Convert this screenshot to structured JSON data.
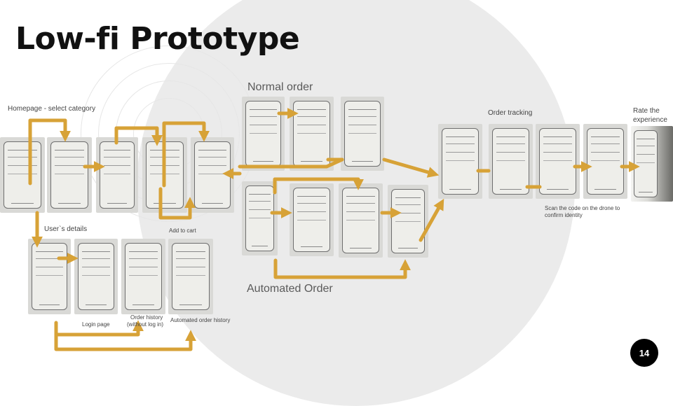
{
  "slide": {
    "title": "Low-fi Prototype",
    "page_number": "14"
  },
  "labels": {
    "homepage": "Homepage - select category",
    "normal_order": "Normal order",
    "order_tracking": "Order tracking",
    "rate_line1": "Rate the",
    "rate_line2": "experience",
    "user_details": "User`s details",
    "add_to_cart": "Add to cart",
    "automated_order": "Automated Order",
    "scan_line1": "Scan the code on the drone to",
    "scan_line2": "confirm identity",
    "login_page": "Login page",
    "order_history_line1": "Order history",
    "order_history_line2": "(without log in)",
    "automated_order_history": "Automated order history"
  },
  "colors": {
    "arrow": "#d7a237",
    "background_circle": "#ebebeb",
    "badge": "#000000"
  }
}
